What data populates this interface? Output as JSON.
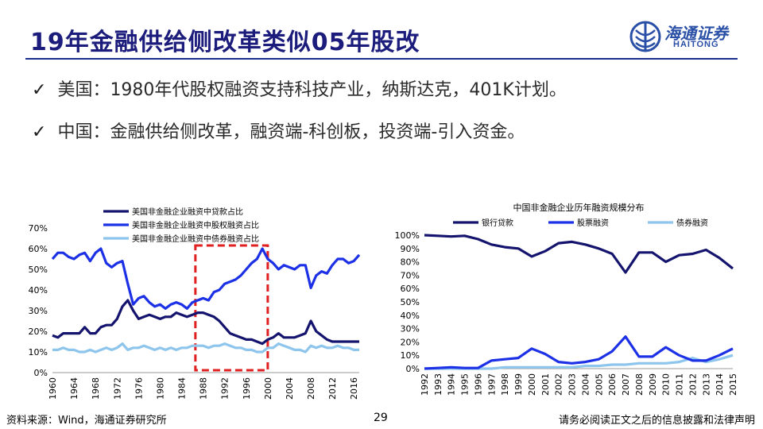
{
  "slide": {
    "title": "19年金融供给侧改革类似05年股改",
    "bullets": [
      {
        "check": "✓",
        "text": "美国：1980年代股权融资支持科技产业，纳斯达克，401K计划。"
      },
      {
        "check": "✓",
        "text": "中国：金融供给侧改革，融资端-科创板，投资端-引入资金。"
      }
    ],
    "logo": {
      "name": "海通证券",
      "en": "HAITONG"
    },
    "footer": {
      "source": "资料来源：Wind，海通证券研究所",
      "page_number": "29",
      "disclaimer": "请务必阅读正文之后的信息披露和法律声明"
    }
  },
  "colors": {
    "title": "#1c1c7c",
    "navy": "#14146e",
    "blue": "#1c30e6",
    "lightblue": "#8ec5ec",
    "highlight_box": "#e02020"
  },
  "chart_data": [
    {
      "type": "line",
      "title": "",
      "xlabel": "",
      "ylabel": "",
      "x": [
        1960,
        1961,
        1962,
        1963,
        1964,
        1965,
        1966,
        1967,
        1968,
        1969,
        1970,
        1971,
        1972,
        1973,
        1974,
        1975,
        1976,
        1977,
        1978,
        1979,
        1980,
        1981,
        1982,
        1983,
        1984,
        1985,
        1986,
        1987,
        1988,
        1989,
        1990,
        1991,
        1992,
        1993,
        1994,
        1995,
        1996,
        1997,
        1998,
        1999,
        2000,
        2001,
        2002,
        2003,
        2004,
        2005,
        2006,
        2007,
        2008,
        2009,
        2010,
        2011,
        2012,
        2013,
        2014,
        2015,
        2016,
        2017
      ],
      "x_ticks": [
        1960,
        1964,
        1968,
        1972,
        1976,
        1980,
        1984,
        1988,
        1992,
        1996,
        2000,
        2004,
        2008,
        2012,
        2016
      ],
      "ylim": [
        0,
        70
      ],
      "y_ticks": [
        "0%",
        "10%",
        "20%",
        "30%",
        "40%",
        "50%",
        "60%",
        "70%"
      ],
      "legend_position": "top",
      "highlight_range": [
        1987,
        2000
      ],
      "series": [
        {
          "name": "美国非金融企业融资中贷款占比",
          "color_key": "navy",
          "values": [
            18,
            17,
            19,
            19,
            19,
            19,
            22,
            19,
            19,
            22,
            23,
            23,
            26,
            32,
            35,
            30,
            26,
            27,
            28,
            27,
            26,
            27,
            27,
            29,
            28,
            27,
            28,
            29,
            29,
            28,
            27,
            25,
            22,
            19,
            18,
            17,
            16,
            16,
            15,
            14,
            16,
            17,
            19,
            17,
            17,
            17,
            18,
            19,
            25,
            20,
            18,
            16,
            15,
            15,
            15,
            15,
            15,
            15
          ]
        },
        {
          "name": "美国非金融企业融资中股权融资占比",
          "color_key": "blue",
          "values": [
            55,
            58,
            58,
            56,
            55,
            57,
            58,
            54,
            58,
            60,
            53,
            51,
            53,
            54,
            43,
            33,
            36,
            37,
            34,
            32,
            33,
            31,
            33,
            34,
            33,
            31,
            34,
            35,
            36,
            35,
            39,
            40,
            43,
            44,
            45,
            47,
            50,
            53,
            55,
            60,
            55,
            53,
            50,
            52,
            51,
            50,
            52,
            52,
            41,
            47,
            49,
            48,
            52,
            55,
            55,
            53,
            54,
            57
          ]
        },
        {
          "name": "美国非金融企业融资中债券融资占比",
          "color_key": "lightblue",
          "values": [
            11,
            11,
            12,
            11,
            11,
            10,
            10,
            11,
            10,
            11,
            12,
            11,
            12,
            14,
            11,
            12,
            12,
            13,
            12,
            11,
            12,
            11,
            12,
            11,
            12,
            12,
            13,
            13,
            13,
            12,
            13,
            13,
            14,
            13,
            12,
            12,
            11,
            11,
            10,
            10,
            12,
            12,
            14,
            13,
            12,
            11,
            11,
            10,
            13,
            12,
            13,
            12,
            12,
            13,
            12,
            12,
            11,
            11
          ]
        }
      ]
    },
    {
      "type": "line",
      "title": "中国非金融企业历年融资规模分布",
      "xlabel": "",
      "ylabel": "",
      "x": [
        1992,
        1993,
        1994,
        1995,
        1996,
        1997,
        1998,
        1999,
        2000,
        2001,
        2002,
        2003,
        2004,
        2005,
        2006,
        2007,
        2008,
        2009,
        2010,
        2011,
        2012,
        2013,
        2014,
        2015
      ],
      "ylim": [
        0,
        100
      ],
      "y_ticks": [
        "0%",
        "10%",
        "20%",
        "30%",
        "40%",
        "50%",
        "60%",
        "70%",
        "80%",
        "90%",
        "100%"
      ],
      "legend_position": "top",
      "series": [
        {
          "name": "银行贷款",
          "color_key": "navy",
          "values": [
            100,
            99.5,
            99,
            99.5,
            97,
            93,
            91,
            90,
            84,
            88,
            94,
            95,
            93,
            90,
            86,
            72,
            87,
            87,
            80,
            85,
            86,
            89,
            83,
            75
          ]
        },
        {
          "name": "股票融资",
          "color_key": "blue",
          "values": [
            0,
            0.5,
            1,
            0.5,
            0.5,
            6,
            7,
            8,
            15,
            11,
            5,
            4,
            5,
            7,
            13,
            24,
            9,
            9,
            16,
            10,
            6,
            6,
            10,
            15
          ]
        },
        {
          "name": "债券融资",
          "color_key": "lightblue",
          "values": [
            0,
            0,
            0,
            0,
            0,
            0,
            1,
            1,
            1,
            1,
            1,
            1,
            2,
            2,
            3,
            3,
            4,
            4,
            4,
            5,
            8,
            5,
            7,
            10
          ]
        }
      ]
    }
  ]
}
